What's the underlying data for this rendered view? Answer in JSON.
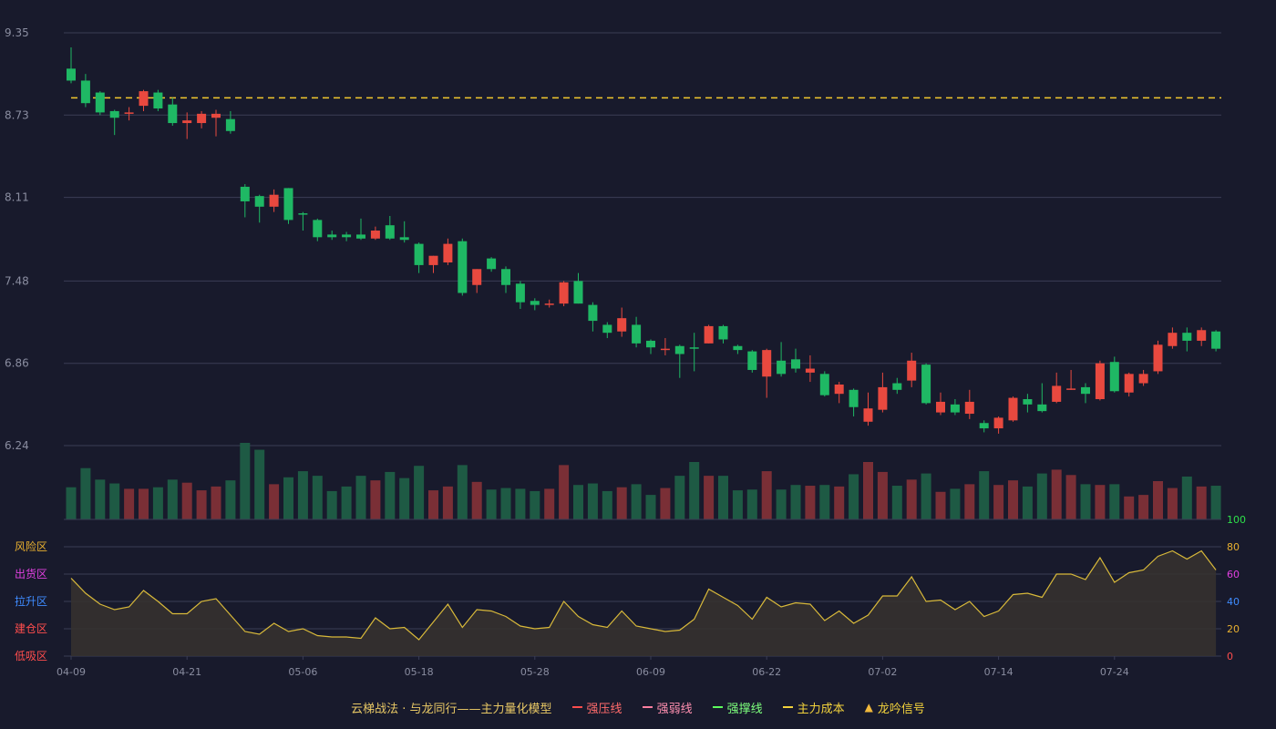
{
  "colors": {
    "background": "#181a2c",
    "grid": "#3a3d55",
    "up": "#e8493f",
    "down": "#1fb864",
    "vol_up": "#7a2f36",
    "vol_down": "#1e5a44",
    "cost_line": "#f2c82e",
    "osc_line": "#d8b93a",
    "osc_fill": "#37322f",
    "axis_text": "#8a8da0"
  },
  "legend": {
    "title": "云梯战法 · 与龙同行——主力量化模型",
    "items": [
      {
        "label": "强压线",
        "color": "#ff4d4d",
        "style": "solid"
      },
      {
        "label": "强弱线",
        "color": "#ff7fa0",
        "style": "dash"
      },
      {
        "label": "强撑线",
        "color": "#5dff5d",
        "style": "solid"
      },
      {
        "label": "主力成本",
        "color": "#f2d23c",
        "style": "dash"
      },
      {
        "label": "龙吟信号",
        "color": "#f2b93c",
        "style": "triangle",
        "glyph": "▲"
      }
    ]
  },
  "chart_data": {
    "type": "candlestick",
    "price_axis": {
      "ticks": [
        "9.35",
        "8.73",
        "8.11",
        "7.48",
        "6.86",
        "6.24"
      ],
      "ylim": [
        6.24,
        9.35
      ]
    },
    "x_ticks": [
      {
        "label": "04-09",
        "index": 0
      },
      {
        "label": "04-21",
        "index": 8
      },
      {
        "label": "05-06",
        "index": 16
      },
      {
        "label": "05-18",
        "index": 24
      },
      {
        "label": "05-28",
        "index": 32
      },
      {
        "label": "06-09",
        "index": 40
      },
      {
        "label": "06-22",
        "index": 48
      },
      {
        "label": "07-02",
        "index": 56
      },
      {
        "label": "07-14",
        "index": 64
      },
      {
        "label": "07-24",
        "index": 72
      }
    ],
    "main_cost": 8.86,
    "candles": [
      [
        9.08,
        8.99,
        9.24,
        8.97
      ],
      [
        8.99,
        8.82,
        9.04,
        8.79
      ],
      [
        8.9,
        8.75,
        8.91,
        8.73
      ],
      [
        8.76,
        8.71,
        8.77,
        8.58
      ],
      [
        8.75,
        8.75,
        8.79,
        8.69
      ],
      [
        8.8,
        8.91,
        8.92,
        8.76
      ],
      [
        8.9,
        8.78,
        8.92,
        8.76
      ],
      [
        8.81,
        8.67,
        8.86,
        8.65
      ],
      [
        8.67,
        8.69,
        8.75,
        8.55
      ],
      [
        8.67,
        8.74,
        8.76,
        8.63
      ],
      [
        8.71,
        8.74,
        8.77,
        8.57
      ],
      [
        8.7,
        8.61,
        8.76,
        8.59
      ],
      [
        8.19,
        8.08,
        8.21,
        7.96
      ],
      [
        8.12,
        8.04,
        8.13,
        7.92
      ],
      [
        8.04,
        8.13,
        8.17,
        8.0
      ],
      [
        8.18,
        7.94,
        8.18,
        7.91
      ],
      [
        7.99,
        7.98,
        8.0,
        7.86
      ],
      [
        7.94,
        7.81,
        7.95,
        7.78
      ],
      [
        7.83,
        7.81,
        7.86,
        7.79
      ],
      [
        7.83,
        7.81,
        7.85,
        7.78
      ],
      [
        7.83,
        7.8,
        7.95,
        7.79
      ],
      [
        7.8,
        7.86,
        7.89,
        7.79
      ],
      [
        7.9,
        7.8,
        7.97,
        7.79
      ],
      [
        7.81,
        7.79,
        7.93,
        7.77
      ],
      [
        7.76,
        7.6,
        7.77,
        7.54
      ],
      [
        7.6,
        7.67,
        7.67,
        7.54
      ],
      [
        7.62,
        7.76,
        7.8,
        7.6
      ],
      [
        7.78,
        7.39,
        7.8,
        7.37
      ],
      [
        7.45,
        7.57,
        7.57,
        7.39
      ],
      [
        7.65,
        7.57,
        7.66,
        7.55
      ],
      [
        7.57,
        7.45,
        7.59,
        7.39
      ],
      [
        7.46,
        7.32,
        7.48,
        7.27
      ],
      [
        7.33,
        7.3,
        7.35,
        7.26
      ],
      [
        7.3,
        7.31,
        7.34,
        7.28
      ],
      [
        7.31,
        7.47,
        7.48,
        7.29
      ],
      [
        7.48,
        7.31,
        7.54,
        7.31
      ],
      [
        7.3,
        7.18,
        7.32,
        7.1
      ],
      [
        7.15,
        7.09,
        7.17,
        7.05
      ],
      [
        7.1,
        7.2,
        7.28,
        7.06
      ],
      [
        7.15,
        7.01,
        7.21,
        6.98
      ],
      [
        7.03,
        6.98,
        7.04,
        6.93
      ],
      [
        6.96,
        6.97,
        7.05,
        6.92
      ],
      [
        6.99,
        6.93,
        7.0,
        6.75
      ],
      [
        6.98,
        6.97,
        7.09,
        6.8
      ],
      [
        7.01,
        7.14,
        7.15,
        7.01
      ],
      [
        7.14,
        7.04,
        7.15,
        7.01
      ],
      [
        6.99,
        6.96,
        7.0,
        6.93
      ],
      [
        6.95,
        6.81,
        6.96,
        6.79
      ],
      [
        6.76,
        6.96,
        6.97,
        6.6
      ],
      [
        6.88,
        6.78,
        7.02,
        6.76
      ],
      [
        6.89,
        6.82,
        6.97,
        6.79
      ],
      [
        6.79,
        6.82,
        6.92,
        6.72
      ],
      [
        6.78,
        6.62,
        6.8,
        6.61
      ],
      [
        6.63,
        6.7,
        6.72,
        6.56
      ],
      [
        6.66,
        6.53,
        6.67,
        6.46
      ],
      [
        6.42,
        6.52,
        6.64,
        6.39
      ],
      [
        6.51,
        6.68,
        6.79,
        6.49
      ],
      [
        6.71,
        6.66,
        6.75,
        6.63
      ],
      [
        6.73,
        6.88,
        6.94,
        6.68
      ],
      [
        6.85,
        6.56,
        6.86,
        6.55
      ],
      [
        6.49,
        6.57,
        6.64,
        6.47
      ],
      [
        6.55,
        6.49,
        6.59,
        6.47
      ],
      [
        6.48,
        6.57,
        6.66,
        6.44
      ],
      [
        6.41,
        6.37,
        6.43,
        6.34
      ],
      [
        6.37,
        6.45,
        6.46,
        6.33
      ],
      [
        6.43,
        6.6,
        6.61,
        6.42
      ],
      [
        6.59,
        6.55,
        6.63,
        6.49
      ],
      [
        6.55,
        6.5,
        6.71,
        6.49
      ],
      [
        6.57,
        6.69,
        6.79,
        6.56
      ],
      [
        6.67,
        6.67,
        6.81,
        6.66
      ],
      [
        6.68,
        6.63,
        6.71,
        6.56
      ],
      [
        6.59,
        6.86,
        6.88,
        6.58
      ],
      [
        6.87,
        6.65,
        6.91,
        6.64
      ],
      [
        6.64,
        6.78,
        6.79,
        6.61
      ],
      [
        6.71,
        6.78,
        6.81,
        6.69
      ],
      [
        6.8,
        7.0,
        7.03,
        6.78
      ],
      [
        6.99,
        7.09,
        7.13,
        6.97
      ],
      [
        7.09,
        7.03,
        7.13,
        6.95
      ],
      [
        7.03,
        7.11,
        7.13,
        6.99
      ],
      [
        7.1,
        6.97,
        7.11,
        6.95
      ]
    ],
    "volume": [
      42,
      67,
      52,
      47,
      40,
      40,
      42,
      52,
      48,
      38,
      43,
      51,
      100,
      91,
      46,
      55,
      63,
      57,
      37,
      43,
      57,
      51,
      62,
      54,
      70,
      38,
      43,
      71,
      49,
      39,
      41,
      40,
      37,
      40,
      71,
      45,
      47,
      37,
      42,
      46,
      32,
      41,
      57,
      75,
      57,
      57,
      38,
      39,
      63,
      39,
      45,
      44,
      45,
      43,
      59,
      75,
      62,
      44,
      52,
      60,
      36,
      40,
      46,
      63,
      45,
      51,
      43,
      60,
      65,
      58,
      46,
      45,
      46,
      30,
      32,
      50,
      41,
      56,
      43,
      44
    ],
    "oscillator": {
      "type": "area",
      "values": [
        57,
        46,
        38,
        34,
        36,
        48,
        40,
        31,
        31,
        40,
        42,
        30,
        18,
        16,
        24,
        18,
        20,
        15,
        14,
        14,
        13,
        28,
        20,
        21,
        12,
        25,
        38,
        21,
        34,
        33,
        29,
        22,
        20,
        21,
        40,
        29,
        23,
        21,
        33,
        22,
        20,
        18,
        19,
        27,
        49,
        43,
        37,
        27,
        43,
        36,
        39,
        38,
        26,
        33,
        24,
        30,
        44,
        44,
        58,
        40,
        41,
        34,
        40,
        29,
        33,
        45,
        46,
        43,
        60,
        60,
        56,
        72,
        54,
        61,
        63,
        73,
        77,
        71,
        77,
        63
      ],
      "ylim": [
        0,
        100
      ],
      "right_ticks": [
        {
          "label": "100",
          "color": "#2ee04a",
          "value": 100
        },
        {
          "label": "80",
          "color": "#e8b030",
          "value": 80
        },
        {
          "label": "60",
          "color": "#e040e0",
          "value": 60
        },
        {
          "label": "40",
          "color": "#3f8cff",
          "value": 40
        },
        {
          "label": "20",
          "color": "#e8b030",
          "value": 20
        },
        {
          "label": "0",
          "color": "#ff4d4d",
          "value": 0
        }
      ],
      "zones": [
        {
          "label": "风险区",
          "color": "#e8b030",
          "value": 80
        },
        {
          "label": "出货区",
          "color": "#e040e0",
          "value": 60
        },
        {
          "label": "拉升区",
          "color": "#3f8cff",
          "value": 40
        },
        {
          "label": "建仓区",
          "color": "#ff4d4d",
          "value": 20
        },
        {
          "label": "低吸区",
          "color": "#ff4d4d",
          "value": 0
        }
      ]
    }
  }
}
